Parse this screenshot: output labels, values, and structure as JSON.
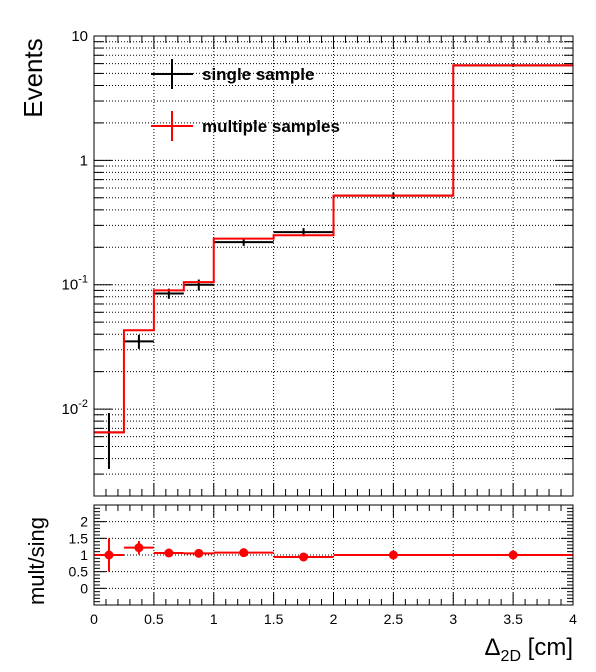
{
  "chart_data": [
    {
      "type": "step",
      "panel": "main",
      "ylabel": "Events",
      "yscale": "log",
      "ylim": [
        0.002,
        10
      ],
      "xlim": [
        0,
        4
      ],
      "grid": true,
      "legend_position": "top-left",
      "bin_edges": [
        0,
        0.25,
        0.5,
        0.75,
        1,
        1.5,
        2,
        3,
        4
      ],
      "y_ticks": [
        {
          "value": 0.01,
          "base": "10",
          "exp": "-2"
        },
        {
          "value": 0.1,
          "base": "10",
          "exp": "-1"
        },
        {
          "value": 1,
          "base": "1",
          "exp": ""
        },
        {
          "value": 10,
          "base": "10",
          "exp": ""
        }
      ],
      "series": [
        {
          "name": "single sample",
          "color": "#000000",
          "style": "points-with-errors",
          "values": [
            0.0065,
            0.035,
            0.085,
            0.1,
            0.22,
            0.265,
            0.52,
            5.8
          ],
          "err_low": [
            0.0032,
            0.0045,
            0.008,
            0.01,
            0.015,
            0.02,
            0.03,
            0.15
          ],
          "err_high": [
            0.0028,
            0.0045,
            0.008,
            0.01,
            0.015,
            0.02,
            0.03,
            0.15
          ]
        },
        {
          "name": "multiple samples",
          "color": "#ff0000",
          "style": "step-histogram",
          "values": [
            0.0065,
            0.043,
            0.09,
            0.105,
            0.235,
            0.25,
            0.52,
            5.8
          ]
        }
      ]
    },
    {
      "type": "scatter",
      "panel": "ratio",
      "ylabel": "mult/sing",
      "xlabel": "Δ2D [cm]",
      "xlabel_main": "Δ",
      "xlabel_sub": "2D",
      "xlabel_unit": " [cm]",
      "ylim": [
        -0.5,
        2.5
      ],
      "xlim": [
        0,
        4
      ],
      "grid": true,
      "x_ticks": [
        "0",
        "0.5",
        "1",
        "1.5",
        "2",
        "2.5",
        "3",
        "3.5",
        "4"
      ],
      "y_ticks": [
        "0",
        "0.5",
        "1",
        "1.5",
        "2"
      ],
      "series": [
        {
          "name": "mult/sing",
          "color": "#ff0000",
          "x": [
            0.125,
            0.375,
            0.625,
            0.875,
            1.25,
            1.75,
            2.5,
            3.5
          ],
          "x_halfwidth": [
            0.125,
            0.125,
            0.125,
            0.125,
            0.25,
            0.25,
            0.5,
            0.5
          ],
          "values": [
            1.0,
            1.22,
            1.06,
            1.05,
            1.07,
            0.94,
            1.0,
            1.0
          ],
          "err": [
            0.5,
            0.2,
            0.1,
            0.1,
            0.05,
            0.08,
            0.03,
            0.02
          ]
        }
      ]
    }
  ]
}
